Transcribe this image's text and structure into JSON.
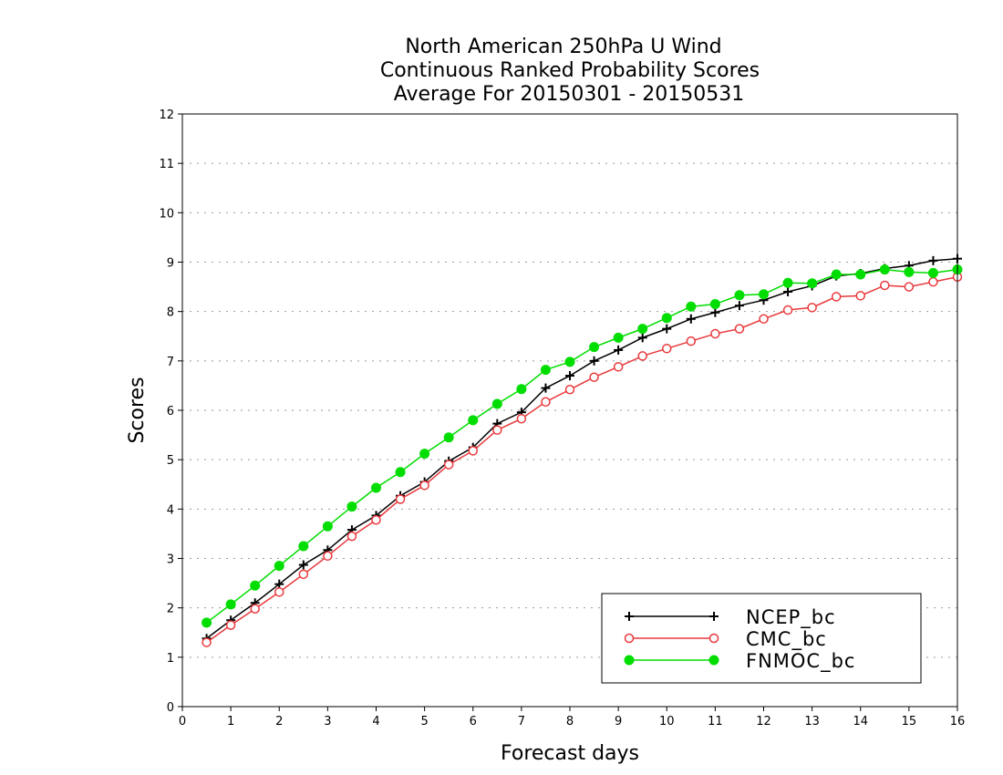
{
  "chart_data": {
    "type": "line",
    "title": [
      "North American 250hPa U Wind",
      "Continuous Ranked Probability Scores",
      "Average For 20150301 - 20150531"
    ],
    "xlabel": "Forecast days",
    "ylabel": "Scores",
    "xlim": [
      0,
      16
    ],
    "ylim": [
      0,
      12
    ],
    "xticks": [
      "0",
      "1",
      "2",
      "3",
      "4",
      "5",
      "6",
      "7",
      "8",
      "9",
      "10",
      "11",
      "12",
      "13",
      "14",
      "15",
      "16"
    ],
    "yticks": [
      "0",
      "1",
      "2",
      "3",
      "4",
      "5",
      "6",
      "7",
      "8",
      "9",
      "10",
      "11",
      "12"
    ],
    "grid": true,
    "legend_position": "bottom-right",
    "x": [
      0.5,
      1,
      1.5,
      2,
      2.5,
      3,
      3.5,
      4,
      4.5,
      5,
      5.5,
      6,
      6.5,
      7,
      7.5,
      8,
      8.5,
      9,
      9.5,
      10,
      10.5,
      11,
      11.5,
      12,
      12.5,
      13,
      13.5,
      14,
      14.5,
      15,
      15.5,
      16
    ],
    "series": [
      {
        "name": "NCEP_bc",
        "color": "#000000",
        "marker": "plus",
        "values": [
          1.38,
          1.75,
          2.1,
          2.48,
          2.87,
          3.17,
          3.58,
          3.87,
          4.27,
          4.55,
          4.97,
          5.25,
          5.73,
          5.96,
          6.45,
          6.7,
          7.0,
          7.22,
          7.47,
          7.65,
          7.85,
          7.98,
          8.12,
          8.23,
          8.4,
          8.52,
          8.72,
          8.77,
          8.87,
          8.93,
          9.03,
          9.07
        ]
      },
      {
        "name": "CMC_bc",
        "color": "#e8393d",
        "marker": "open-circle",
        "values": [
          1.3,
          1.65,
          1.98,
          2.32,
          2.68,
          3.05,
          3.45,
          3.78,
          4.2,
          4.48,
          4.9,
          5.18,
          5.6,
          5.83,
          6.17,
          6.42,
          6.67,
          6.88,
          7.1,
          7.25,
          7.4,
          7.55,
          7.65,
          7.85,
          8.03,
          8.08,
          8.3,
          8.32,
          8.53,
          8.5,
          8.6,
          8.7
        ]
      },
      {
        "name": "FNMOC_bc",
        "color": "#00dd00",
        "marker": "filled-circle",
        "values": [
          1.7,
          2.07,
          2.45,
          2.85,
          3.25,
          3.65,
          4.05,
          4.43,
          4.75,
          5.12,
          5.45,
          5.8,
          6.13,
          6.43,
          6.82,
          6.98,
          7.28,
          7.47,
          7.65,
          7.87,
          8.1,
          8.15,
          8.33,
          8.35,
          8.58,
          8.57,
          8.75,
          8.75,
          8.85,
          8.8,
          8.78,
          8.85
        ]
      }
    ]
  }
}
